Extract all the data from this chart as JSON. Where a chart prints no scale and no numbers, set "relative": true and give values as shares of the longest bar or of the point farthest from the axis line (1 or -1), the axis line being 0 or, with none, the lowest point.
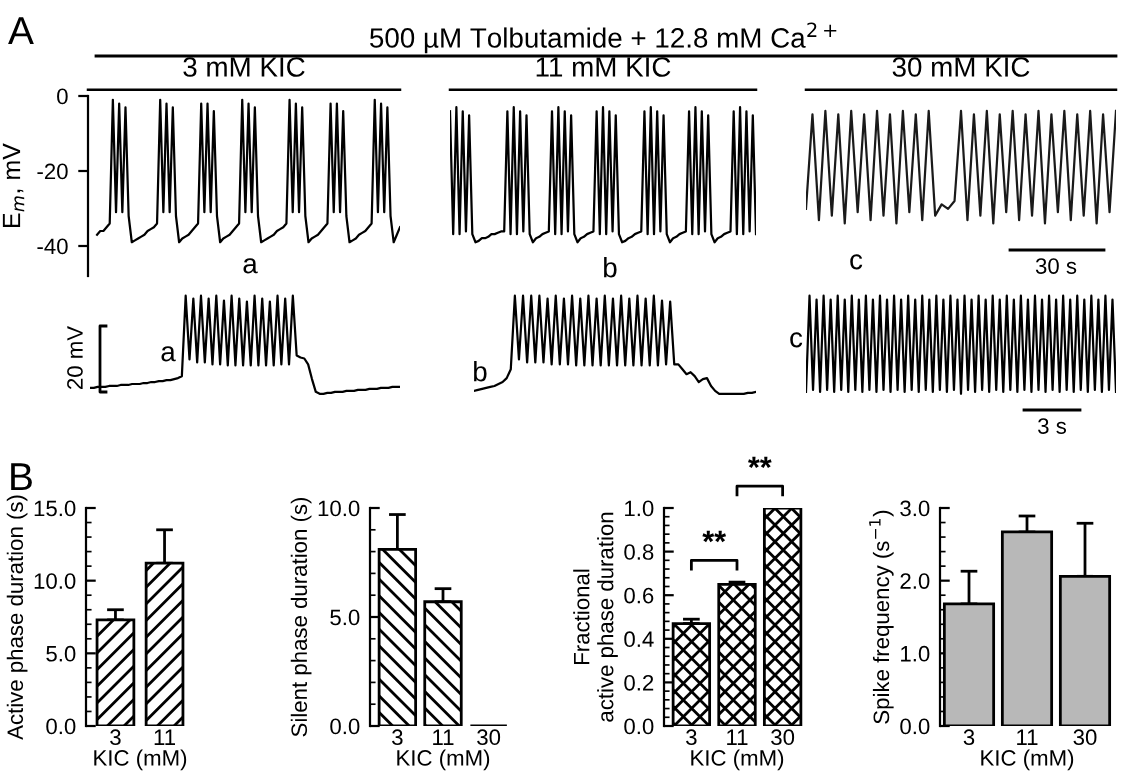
{
  "chart_data": [
    {
      "type": "line",
      "title": "3 mM KIC",
      "ylabel": "E$_{m}$, mV",
      "ylim": [
        -48,
        0
      ],
      "yticks": [
        0,
        -20,
        -40
      ],
      "tick_labels": "y",
      "annotations": [
        "A",
        "500 µM Tolbutamide + 12.8 mM Ca$^{2+}$",
        "a"
      ],
      "categories": [
        null,
        null,
        null,
        null,
        null,
        null,
        null,
        null,
        null,
        null,
        null,
        null,
        null,
        null,
        null,
        null,
        null,
        null,
        null,
        null,
        null,
        null,
        null,
        null,
        null,
        null,
        null,
        null,
        null,
        null,
        null,
        null,
        null,
        null,
        null,
        null,
        null,
        null,
        null,
        null,
        null,
        null,
        null,
        null,
        null,
        null,
        null,
        null,
        null,
        null,
        null,
        null,
        null,
        null,
        null,
        null,
        null,
        null,
        null,
        null,
        null,
        null,
        null,
        null,
        null,
        null,
        null,
        null,
        null,
        null,
        null,
        null,
        null,
        null,
        null,
        null,
        null,
        null,
        null,
        null,
        null,
        null,
        null,
        null,
        null,
        null,
        null,
        null,
        null,
        null,
        null,
        null,
        null,
        null,
        null,
        null,
        null
      ],
      "series": [
        {
          "color": "#000000",
          "values": [
            -37,
            -36,
            -36,
            -35,
            -34,
            -1,
            -31,
            -2,
            -31,
            -3,
            -32,
            -39,
            -38.5,
            -38,
            -37.5,
            -37,
            -36,
            -35.5,
            -35,
            -34,
            -1,
            -31,
            -2,
            -31,
            -3,
            -32,
            -39,
            -38,
            -37.5,
            -37,
            -36,
            -35,
            -34,
            -2,
            -31,
            -2,
            -31,
            -4,
            -32,
            -39,
            -38,
            -37.5,
            -37,
            -36,
            -35,
            -34,
            -1,
            -31,
            -2,
            -31,
            -3,
            -32,
            -39,
            -38.5,
            -38,
            -37.5,
            -37,
            -36,
            -35.5,
            -35,
            -34,
            -1,
            -31,
            -2,
            -31,
            -3,
            -32,
            -39,
            -38,
            -37.5,
            -37,
            -36,
            -35,
            -34,
            -2,
            -31,
            -2,
            -31,
            -4,
            -32,
            -39,
            -38.5,
            -38,
            -37,
            -36.5,
            -36,
            -35,
            -34,
            -1,
            -31,
            -2,
            -31,
            -3,
            -32,
            -39,
            -37,
            -35
          ]
        }
      ]
    },
    {
      "type": "line",
      "title": "11 mM KIC",
      "relative": true,
      "tick_labels": false,
      "annotations": [
        "b"
      ],
      "categories": [
        null,
        null,
        null,
        null,
        null,
        null,
        null,
        null,
        null,
        null,
        null,
        null,
        null,
        null,
        null,
        null,
        null,
        null,
        null,
        null,
        null,
        null,
        null,
        null,
        null,
        null,
        null,
        null,
        null,
        null,
        null,
        null,
        null,
        null,
        null,
        null,
        null,
        null,
        null,
        null,
        null,
        null,
        null,
        null,
        null,
        null,
        null,
        null,
        null,
        null,
        null,
        null,
        null,
        null,
        null,
        null,
        null,
        null,
        null,
        null,
        null,
        null,
        null,
        null,
        null,
        null,
        null,
        null,
        null,
        null,
        null,
        null,
        null,
        null,
        null,
        null,
        null,
        null,
        null,
        null,
        null,
        null,
        null,
        null,
        null,
        null,
        null,
        null,
        null,
        null,
        null,
        null,
        null,
        null,
        null,
        null,
        null
      ],
      "series": [
        {
          "color": "#000000",
          "values": [
            0.97,
            0.06,
            1,
            0.06,
            0.97,
            0.08,
            0.94,
            0.06,
            0,
            0.01,
            0.03,
            0.03,
            0.04,
            0.06,
            0.06,
            0.07,
            0.08,
            0.08,
            0.97,
            0.06,
            1,
            0.06,
            0.97,
            0.08,
            0.94,
            0.06,
            0,
            0.03,
            0.04,
            0.06,
            0.07,
            0.08,
            0.97,
            0.06,
            1,
            0.06,
            0.97,
            0.08,
            0.94,
            0.06,
            0,
            0.03,
            0.04,
            0.06,
            0.07,
            0.08,
            0.97,
            0.06,
            1,
            0.06,
            0.97,
            0.08,
            0.94,
            0.06,
            0,
            0.01,
            0.03,
            0.04,
            0.06,
            0.07,
            0.08,
            0.97,
            0.06,
            1,
            0.06,
            0.97,
            0.08,
            0.94,
            0.06,
            0,
            0.03,
            0.04,
            0.06,
            0.07,
            0.08,
            0.97,
            0.06,
            1,
            0.06,
            0.97,
            0.08,
            0.94,
            0.06,
            0,
            0.03,
            0.04,
            0.06,
            0.07,
            0.08,
            0.97,
            0.06,
            1,
            0.06,
            0.97,
            0.08,
            0.94,
            0.06
          ]
        }
      ]
    },
    {
      "type": "line",
      "title": "30 mM KIC",
      "relative": true,
      "tick_labels": false,
      "annotations": [
        "c",
        "30 s"
      ],
      "categories": [
        null,
        null,
        null,
        null,
        null,
        null,
        null,
        null,
        null,
        null,
        null,
        null,
        null,
        null,
        null,
        null,
        null,
        null,
        null,
        null,
        null,
        null,
        null,
        null,
        null,
        null,
        null,
        null,
        null,
        null,
        null,
        null,
        null,
        null,
        null,
        null,
        null,
        null,
        null,
        null,
        null,
        null,
        null,
        null,
        null,
        null,
        null,
        null,
        null
      ],
      "series": [
        {
          "color": "#1a1a1a",
          "values": [
            0.13,
            0.97,
            0.03,
            1,
            0.07,
            0.97,
            0,
            1,
            0.1,
            0.97,
            0.03,
            1,
            0.07,
            0.97,
            0,
            1,
            0.1,
            0.97,
            0.03,
            1,
            0.07,
            0.17,
            0.13,
            0.2,
            1,
            0.03,
            0.97,
            0.07,
            1,
            0,
            0.97,
            0.1,
            1,
            0.03,
            0.97,
            0.07,
            1,
            0,
            0.97,
            0.1,
            1,
            0.03,
            0.97,
            0.07,
            1,
            0,
            0.97,
            0.1,
            1
          ]
        }
      ]
    },
    {
      "type": "line",
      "relative": true,
      "ylabel": "20 mV",
      "tick_labels": false,
      "annotations": [
        "a"
      ],
      "categories": [
        null,
        null,
        null,
        null,
        null,
        null,
        null,
        null,
        null,
        null,
        null,
        null,
        null,
        null,
        null,
        null,
        null,
        null,
        null,
        null,
        null,
        null,
        null,
        null,
        null,
        null,
        null,
        null,
        null,
        null,
        null,
        null,
        null,
        null,
        null,
        null,
        null,
        null,
        null,
        null,
        null,
        null,
        null,
        null,
        null,
        null,
        null,
        null,
        null,
        null,
        null,
        null,
        null,
        null,
        null,
        null,
        null,
        null,
        null,
        null,
        null,
        null,
        null,
        null,
        null,
        null,
        null,
        null,
        null,
        null,
        null,
        null,
        null,
        null,
        null,
        null,
        null,
        null,
        null,
        null,
        null,
        null
      ],
      "series": [
        {
          "color": "#000000",
          "values": [
            0.06,
            0.06,
            0.07,
            0.07,
            0.07,
            0.08,
            0.08,
            0.08,
            0.09,
            0.09,
            0.09,
            0.1,
            0.1,
            0.1,
            0.11,
            0.11,
            0.12,
            0.12,
            0.13,
            0.13,
            0.14,
            0.14,
            0.15,
            0.16,
            0.18,
            1,
            0.35,
            0.97,
            0.32,
            1,
            0.32,
            0.97,
            0.3,
            1,
            0.3,
            0.95,
            0.29,
            1,
            0.29,
            0.97,
            0.29,
            0.94,
            0.29,
            1,
            0.29,
            0.97,
            0.29,
            0.94,
            0.29,
            1,
            0.3,
            0.97,
            0.3,
            1,
            0.39,
            0.37,
            0.36,
            0.3,
            0.15,
            0.02,
            0,
            0,
            0.01,
            0.01,
            0.02,
            0.02,
            0.02,
            0.03,
            0.03,
            0.03,
            0.04,
            0.04,
            0.04,
            0.05,
            0.05,
            0.05,
            0.06,
            0.06,
            0.06,
            0.07,
            0.07,
            0.07
          ]
        }
      ]
    },
    {
      "type": "line",
      "relative": true,
      "tick_labels": false,
      "annotations": [
        "b"
      ],
      "categories": [
        null,
        null,
        null,
        null,
        null,
        null,
        null,
        null,
        null,
        null,
        null,
        null,
        null,
        null,
        null,
        null,
        null,
        null,
        null,
        null,
        null,
        null,
        null,
        null,
        null,
        null,
        null,
        null,
        null,
        null,
        null,
        null,
        null,
        null,
        null,
        null,
        null,
        null,
        null,
        null,
        null,
        null,
        null,
        null,
        null,
        null,
        null,
        null,
        null,
        null,
        null,
        null,
        null,
        null,
        null,
        null,
        null,
        null,
        null,
        null,
        null,
        null,
        null,
        null,
        null,
        null,
        null,
        null,
        null,
        null
      ],
      "series": [
        {
          "color": "#000000",
          "values": [
            0.03,
            0.04,
            0.05,
            0.06,
            0.07,
            0.08,
            0.1,
            0.12,
            0.16,
            0.25,
            1,
            0.35,
            1,
            0.32,
            1,
            0.32,
            1,
            0.32,
            0.97,
            0.3,
            1,
            0.3,
            0.97,
            0.3,
            1,
            0.29,
            0.97,
            0.29,
            1,
            0.29,
            0.97,
            0.29,
            1,
            0.29,
            0.97,
            0.29,
            1,
            0.29,
            0.97,
            0.29,
            1,
            0.29,
            0.97,
            0.29,
            1,
            0.29,
            0.95,
            0.3,
            0.94,
            0.3,
            0.3,
            0.25,
            0.2,
            0.22,
            0.18,
            0.12,
            0.15,
            0.16,
            0.08,
            0.03,
            0,
            0,
            0,
            0,
            0,
            0,
            0,
            0.01,
            0.01,
            0.02
          ]
        }
      ]
    },
    {
      "type": "line",
      "relative": true,
      "tick_labels": false,
      "annotations": [
        "c",
        "3 s"
      ],
      "categories": [
        null,
        null,
        null,
        null,
        null,
        null,
        null,
        null,
        null,
        null,
        null,
        null,
        null,
        null,
        null,
        null,
        null,
        null,
        null,
        null,
        null,
        null,
        null,
        null,
        null,
        null,
        null,
        null,
        null,
        null,
        null,
        null,
        null,
        null,
        null,
        null,
        null,
        null,
        null,
        null,
        null,
        null,
        null,
        null,
        null,
        null,
        null,
        null,
        null,
        null,
        null,
        null,
        null,
        null,
        null,
        null,
        null,
        null,
        null,
        null,
        null,
        null,
        null,
        null,
        null,
        null,
        null,
        null,
        null,
        null,
        null,
        null,
        null,
        null,
        null,
        null,
        null,
        null,
        null,
        null,
        null,
        null,
        null,
        null,
        null,
        null,
        null,
        null,
        null
      ],
      "series": [
        {
          "color": "#000000",
          "values": [
            0.02,
            1,
            0.04,
            0.96,
            0.02,
            1,
            0.04,
            0.96,
            0.02,
            1,
            0.04,
            0.96,
            0.02,
            1,
            0.04,
            0.96,
            0.02,
            1,
            0.04,
            0.96,
            0.02,
            1,
            0.04,
            0.96,
            0.02,
            1,
            0.04,
            0.96,
            0.02,
            1,
            0.04,
            0.96,
            0.02,
            1,
            0.04,
            0.96,
            0.02,
            1,
            0.04,
            0.96,
            0.02,
            1,
            0.04,
            0.96,
            0,
            1,
            0.04,
            0.96,
            0.02,
            1,
            0.04,
            0.96,
            0.02,
            1,
            0.04,
            0.96,
            0.02,
            1,
            0.04,
            0.96,
            0.02,
            1,
            0.04,
            0.96,
            0.02,
            1,
            0.04,
            0.96,
            0.02,
            1,
            0.04,
            0.96,
            0.02,
            1,
            0.04,
            0.96,
            0.02,
            1,
            0.04,
            0.96,
            0.02,
            1,
            0.04,
            0.96,
            0.02,
            1,
            0.04,
            0.96,
            0.02
          ]
        }
      ]
    },
    {
      "type": "bar",
      "ylabel": "Active phase duration (s)",
      "xlabel": "KIC (mM)",
      "categories": [
        "3",
        "11"
      ],
      "values": [
        7.3,
        11.2
      ],
      "errors": [
        0.7,
        2.3
      ],
      "color": "#000000",
      "ylim": [
        0,
        15
      ],
      "yticks": [
        {
          "value": 0,
          "label": "0.0"
        },
        {
          "value": 5,
          "label": "5.0"
        },
        {
          "value": 10,
          "label": "10.0"
        },
        {
          "value": 15,
          "label": "15.0"
        }
      ],
      "annotations": [
        "B"
      ]
    },
    {
      "type": "bar",
      "ylabel": "Silent phase duration (s)",
      "xlabel": "KIC (mM)",
      "categories": [
        "3",
        "11",
        "30"
      ],
      "values": [
        8.1,
        5.7,
        0
      ],
      "errors": [
        1.6,
        0.6,
        null
      ],
      "color": "#000000",
      "ylim": [
        0,
        10
      ],
      "yticks": [
        {
          "value": 0,
          "label": "0.0"
        },
        {
          "value": 5,
          "label": "5.0"
        },
        {
          "value": 10,
          "label": "10.0"
        }
      ]
    },
    {
      "type": "bar",
      "ylabel": "Fractional\nactive phase duration",
      "xlabel": "KIC (mM)",
      "categories": [
        "3",
        "11",
        "30"
      ],
      "values": [
        0.47,
        0.65,
        1.0
      ],
      "errors": [
        0.02,
        0.01,
        null
      ],
      "color": "#000000",
      "ylim": [
        0,
        1
      ],
      "yticks": [
        {
          "value": 0,
          "label": "0.0"
        },
        {
          "value": 0.2,
          "label": "0.2"
        },
        {
          "value": 0.4,
          "label": "0.4"
        },
        {
          "value": 0.6,
          "label": "0.6"
        },
        {
          "value": 0.8,
          "label": "0.8"
        },
        {
          "value": 1,
          "label": "1.0"
        }
      ],
      "annotations": [
        "**",
        "**"
      ]
    },
    {
      "type": "bar",
      "ylabel": "Spike frequency (s$^{−1}$)",
      "xlabel": "KIC (mM)",
      "categories": [
        "3",
        "11",
        "30"
      ],
      "values": [
        1.68,
        2.67,
        2.06
      ],
      "errors": [
        0.45,
        0.22,
        0.73
      ],
      "color": "#b8b8b8",
      "ylim": [
        0,
        3
      ],
      "yticks": [
        {
          "value": 0,
          "label": "0.0"
        },
        {
          "value": 1,
          "label": "1.0"
        },
        {
          "value": 2,
          "label": "2.0"
        },
        {
          "value": 3,
          "label": "3.0"
        }
      ]
    }
  ]
}
